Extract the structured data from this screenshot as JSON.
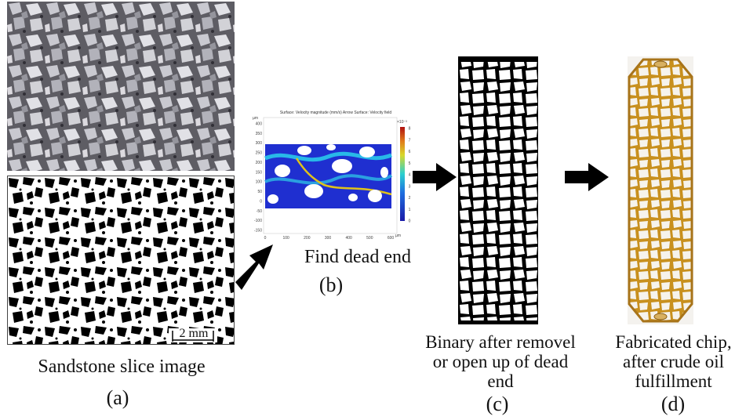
{
  "panels": {
    "a": {
      "label": "(a)",
      "caption": "Sandstone slice image",
      "scale_bar": "2 mm"
    },
    "b": {
      "label": "(b)",
      "caption": "Find dead end",
      "plot_title": "Surface: Velocity magnitude (mm/s)  Arrow Surface: Velocity field",
      "y_unit": "µm",
      "x_unit": "µm",
      "colorbar_unit": "×10⁻³",
      "y_ticks": [
        "400",
        "350",
        "300",
        "250",
        "200",
        "150",
        "100",
        "50",
        "0",
        "-50",
        "-100",
        "-150"
      ],
      "x_ticks": [
        "0",
        "100",
        "200",
        "300",
        "400",
        "500",
        "600"
      ],
      "colorbar_ticks": [
        "8",
        "7",
        "6",
        "5",
        "4",
        "3",
        "2",
        "1",
        "0"
      ]
    },
    "c": {
      "label": "(c)",
      "caption_lines": [
        "Binary after removel",
        "or open up of dead",
        "end"
      ]
    },
    "d": {
      "label": "(d)",
      "caption_lines": [
        "Fabricated chip,",
        "after crude oil",
        "fulfillment"
      ]
    }
  },
  "colors": {
    "arrow": "#000000",
    "oil": "#c8901e",
    "flow_low": "#1f2fd0",
    "flow_high": "#e0c21a"
  }
}
